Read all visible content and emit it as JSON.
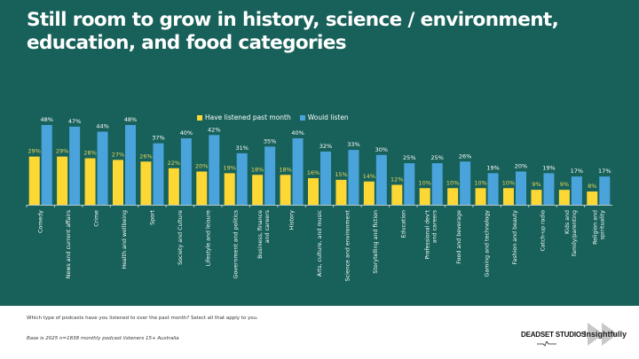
{
  "title": "Still room to grow in history, science / environment, education, and food categories",
  "footer": {
    "question": "Which type of podcasts have you listened to over the past month? Select all that apply to you.",
    "base": "Base is 2025 n=1838 monthly podcast listeners 15+ Australia"
  },
  "logos": {
    "deadset": "DEADSET STUDIOS",
    "insightfully": "Insightfully"
  },
  "colors": {
    "background": "#18615a",
    "listened": "#fdd835",
    "would_listen": "#4aa3db"
  },
  "chart_data": {
    "type": "bar",
    "title": "Still room to grow in history, science / environment, education, and food categories",
    "xlabel": "",
    "ylabel": "",
    "ylim": [
      0,
      50
    ],
    "grid": false,
    "legend_position": "top-center",
    "categories": [
      "Comedy",
      "News and current affairs",
      "Crime",
      "Health and wellbeing",
      "Sport",
      "Society and Culture",
      "Lifestyle and leisure",
      "Government and politics",
      "Business, finance and careers",
      "History",
      "Arts, culture, and music",
      "Science and environment",
      "Storytelling and fiction",
      "Education",
      "Professional dev't and careers",
      "Food and beverage",
      "Gaming and technology",
      "Fashion and beauty",
      "Catch-up radio",
      "Kids and family/parenting",
      "Religion and spirituality"
    ],
    "series": [
      {
        "name": "Have listened past month",
        "color": "#fdd835",
        "values": [
          29,
          29,
          28,
          27,
          26,
          22,
          20,
          19,
          18,
          18,
          16,
          15,
          14,
          12,
          10,
          10,
          10,
          10,
          9,
          9,
          8
        ]
      },
      {
        "name": "Would listen",
        "color": "#4aa3db",
        "values": [
          48,
          47,
          44,
          48,
          37,
          40,
          42,
          31,
          35,
          40,
          32,
          33,
          30,
          25,
          25,
          26,
          19,
          20,
          19,
          17,
          17
        ]
      }
    ],
    "value_suffix": "%"
  }
}
